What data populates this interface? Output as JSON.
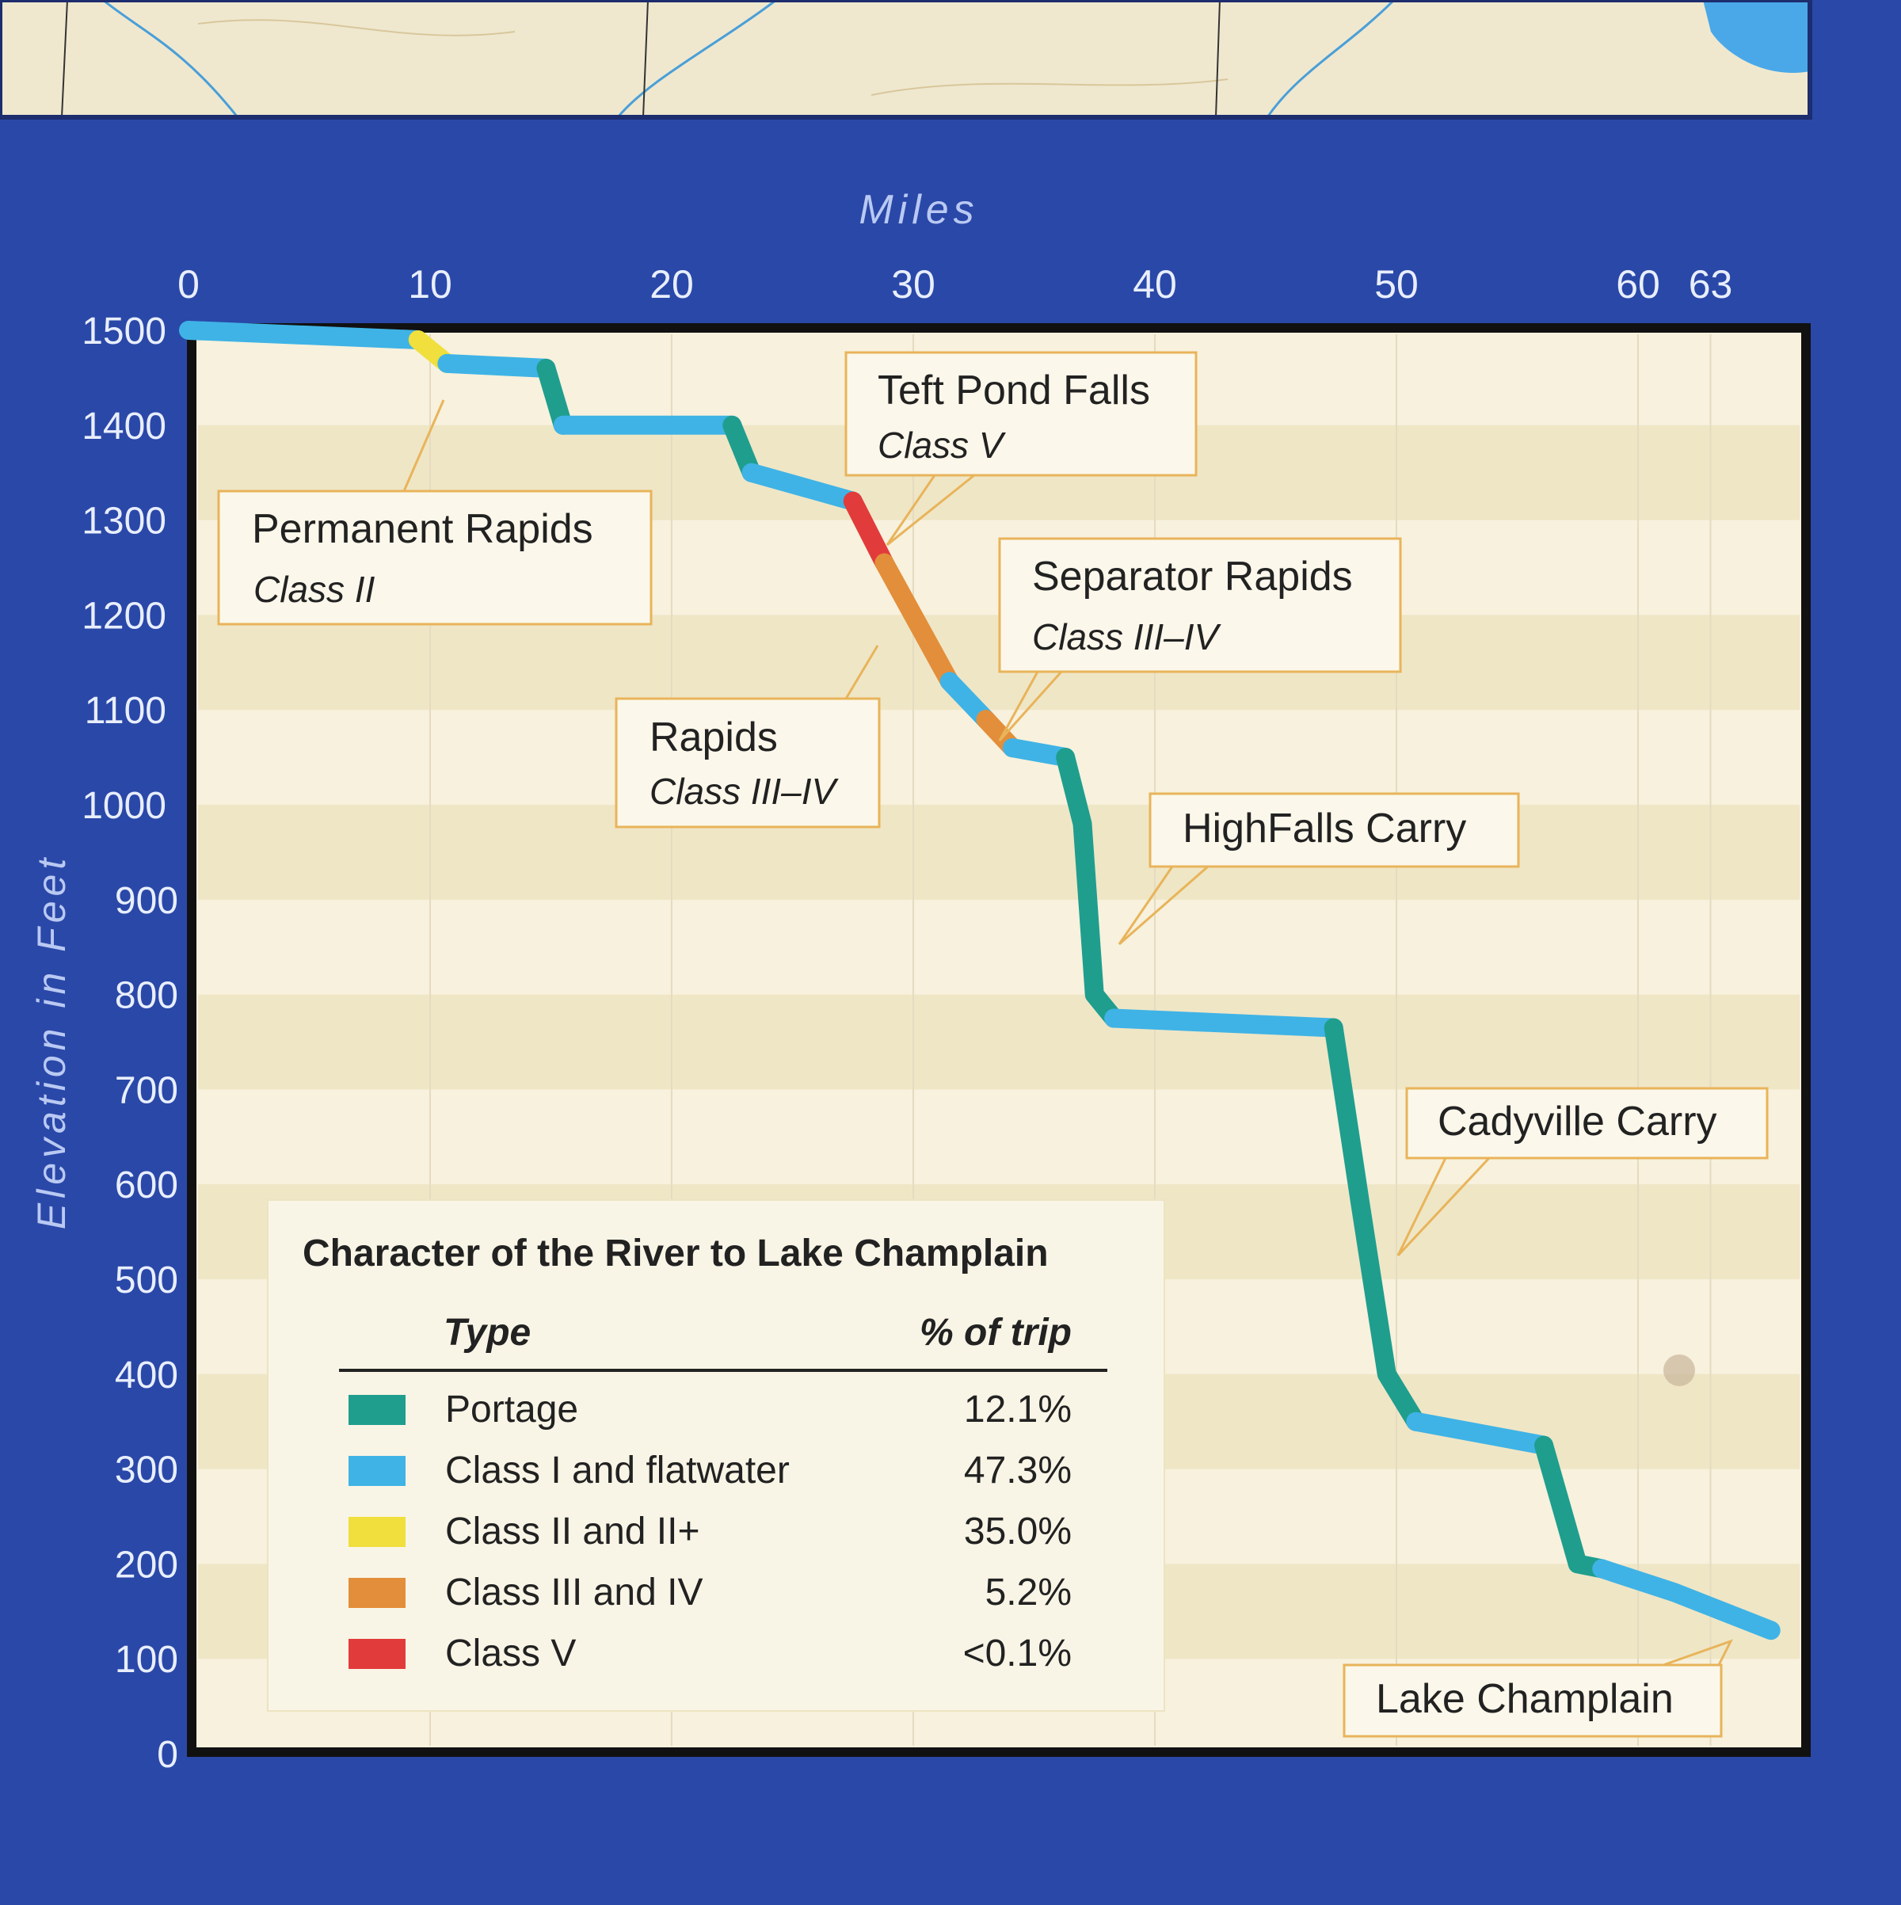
{
  "colors": {
    "board_blue": "#2a48a8",
    "panel_cream": "#f7f1dd",
    "band_tan": "#ece1bd",
    "callout_border": "#e8b45a",
    "portage": "#1f9e8e",
    "class_i_flatwater": "#3fb3e6",
    "class_ii": "#f0df3c",
    "class_iii_iv": "#e38e3a",
    "class_v": "#e23b3b"
  },
  "chart_data": {
    "type": "line",
    "xlabel": "Miles",
    "ylabel": "Elevation in Feet",
    "xlim": [
      0,
      66.5
    ],
    "ylim": [
      0,
      1500
    ],
    "x_ticks": [
      "0",
      "10",
      "20",
      "30",
      "40",
      "50",
      "60",
      "63"
    ],
    "x_tick_values": [
      0,
      10,
      20,
      30,
      40,
      50,
      60,
      63
    ],
    "y_ticks": [
      "0",
      "100",
      "200",
      "300",
      "400",
      "500",
      "600",
      "700",
      "800",
      "900",
      "1000",
      "1100",
      "1200",
      "1300",
      "1400",
      "1500"
    ],
    "y_tick_values": [
      0,
      100,
      200,
      300,
      400,
      500,
      600,
      700,
      800,
      900,
      1000,
      1100,
      1200,
      1300,
      1400,
      1500
    ],
    "grid": false,
    "series": [
      {
        "type": "flat",
        "points": [
          [
            0,
            1500
          ],
          [
            9.5,
            1490
          ]
        ]
      },
      {
        "type": "class_ii",
        "points": [
          [
            9.5,
            1490
          ],
          [
            10.7,
            1465
          ]
        ]
      },
      {
        "type": "flat",
        "points": [
          [
            10.7,
            1465
          ],
          [
            14.8,
            1460
          ]
        ]
      },
      {
        "type": "portage",
        "points": [
          [
            14.8,
            1460
          ],
          [
            15.5,
            1400
          ]
        ]
      },
      {
        "type": "flat",
        "points": [
          [
            15.5,
            1400
          ],
          [
            22.5,
            1400
          ]
        ]
      },
      {
        "type": "portage",
        "points": [
          [
            22.5,
            1400
          ],
          [
            23.3,
            1350
          ]
        ]
      },
      {
        "type": "flat",
        "points": [
          [
            23.3,
            1350
          ],
          [
            27.5,
            1320
          ]
        ]
      },
      {
        "type": "class_v",
        "points": [
          [
            27.5,
            1320
          ],
          [
            28.8,
            1255
          ]
        ]
      },
      {
        "type": "class_iii_iv",
        "points": [
          [
            28.8,
            1255
          ],
          [
            31.5,
            1130
          ]
        ]
      },
      {
        "type": "flat",
        "points": [
          [
            31.5,
            1130
          ],
          [
            33.0,
            1090
          ]
        ]
      },
      {
        "type": "class_iii_iv",
        "points": [
          [
            33.0,
            1090
          ],
          [
            34.1,
            1060
          ]
        ]
      },
      {
        "type": "flat",
        "points": [
          [
            34.1,
            1060
          ],
          [
            36.3,
            1050
          ]
        ]
      },
      {
        "type": "portage",
        "points": [
          [
            36.3,
            1050
          ],
          [
            37.0,
            980
          ],
          [
            37.5,
            800
          ],
          [
            38.3,
            775
          ]
        ]
      },
      {
        "type": "flat",
        "points": [
          [
            38.3,
            775
          ],
          [
            47.4,
            765
          ]
        ]
      },
      {
        "type": "portage",
        "points": [
          [
            47.4,
            765
          ],
          [
            48.5,
            580
          ],
          [
            49.6,
            400
          ],
          [
            50.8,
            350
          ]
        ]
      },
      {
        "type": "flat",
        "points": [
          [
            50.8,
            350
          ],
          [
            56.1,
            325
          ]
        ]
      },
      {
        "type": "portage",
        "points": [
          [
            56.1,
            325
          ],
          [
            57.5,
            200
          ],
          [
            58.5,
            195
          ]
        ]
      },
      {
        "type": "flat",
        "points": [
          [
            58.5,
            195
          ],
          [
            61.5,
            170
          ],
          [
            65.5,
            130
          ]
        ]
      }
    ],
    "annotations": [
      {
        "title": "Permanent Rapids",
        "subtitle": "Class II",
        "points_to": [
          10.2,
          1465
        ]
      },
      {
        "title": "Teft Pond Falls",
        "subtitle": "Class V",
        "points_to": [
          28.8,
          1290
        ]
      },
      {
        "title": "Separator Rapids",
        "subtitle": "Class III–IV",
        "points_to": [
          34.0,
          1075
        ]
      },
      {
        "title": "Rapids",
        "subtitle": "Class III–IV",
        "points_to": [
          29.0,
          1160
        ]
      },
      {
        "title": "HighFalls Carry",
        "subtitle": "",
        "points_to": [
          37.2,
          855
        ]
      },
      {
        "title": "Cadyville Carry",
        "subtitle": "",
        "points_to": [
          48.4,
          545
        ]
      },
      {
        "title": "Lake Champlain",
        "subtitle": "",
        "points_to": [
          64.5,
          130
        ]
      }
    ]
  },
  "legend": {
    "title": "Character of the River to Lake Champlain",
    "col_type": "Type",
    "col_pct": "% of trip",
    "rows": [
      {
        "label": "Portage",
        "pct": "12.1%",
        "color": "#1f9e8e"
      },
      {
        "label": "Class I and flatwater",
        "pct": "47.3%",
        "color": "#3fb3e6"
      },
      {
        "label": "Class II and II+",
        "pct": "35.0%",
        "color": "#f0df3c"
      },
      {
        "label": "Class III and IV",
        "pct": "5.2%",
        "color": "#e38e3a"
      },
      {
        "label": "Class V",
        "pct": "<0.1%",
        "color": "#e23b3b"
      }
    ]
  }
}
